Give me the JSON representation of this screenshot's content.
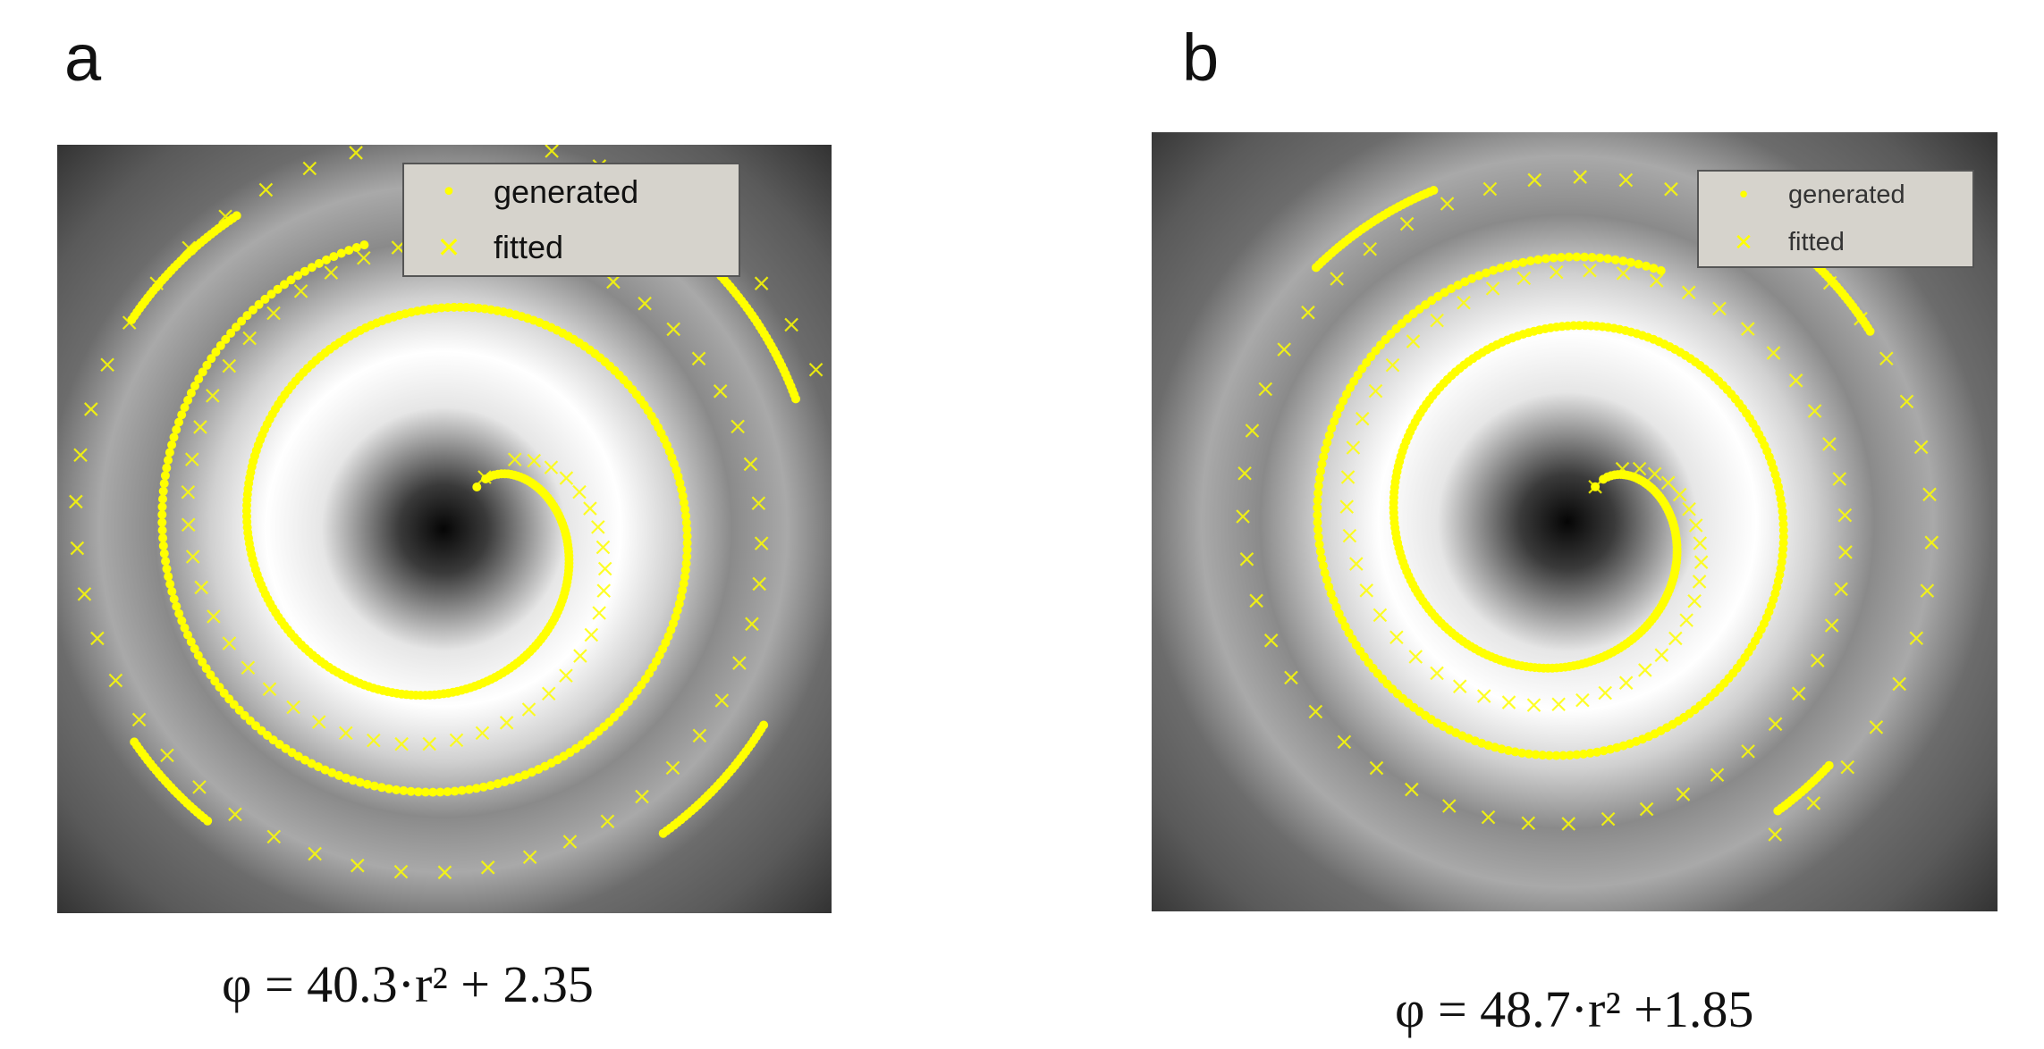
{
  "panels": [
    {
      "label": "a",
      "equation": "φ = 40.3·r² + 2.35",
      "legend": {
        "generated": "generated",
        "fitted": "fitted"
      }
    },
    {
      "label": "b",
      "equation": "φ = 48.7·r² +1.85",
      "legend": {
        "generated": "generated",
        "fitted": "fitted"
      }
    }
  ],
  "chart_data": [
    {
      "type": "scatter",
      "title": "",
      "model": {
        "a": 40.3,
        "b": 2.35
      },
      "series": [
        {
          "name": "generated",
          "marker": "dot",
          "color": "#ffff00"
        },
        {
          "name": "fitted",
          "marker": "x",
          "color": "#ffff00"
        }
      ]
    },
    {
      "type": "scatter",
      "title": "",
      "model": {
        "a": 48.7,
        "b": 1.85
      },
      "series": [
        {
          "name": "generated",
          "marker": "dot",
          "color": "#ffff00"
        },
        {
          "name": "fitted",
          "marker": "x",
          "color": "#ffff00"
        }
      ]
    }
  ]
}
